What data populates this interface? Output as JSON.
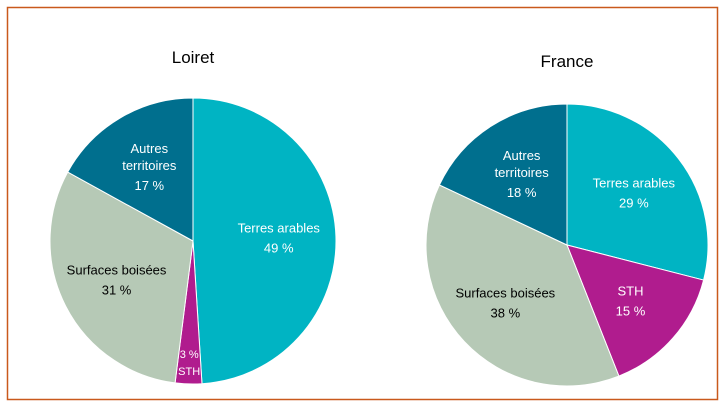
{
  "chart_data": [
    {
      "type": "pie",
      "title": "Loiret",
      "categories": [
        "Terres arables",
        "STH",
        "Surfaces boisées",
        "Autres territoires"
      ],
      "values": [
        49,
        3,
        31,
        17
      ],
      "value_labels": [
        "49 %",
        "3 %",
        "31 %",
        "17 %"
      ],
      "colors": [
        "#00b4c3",
        "#b01c8e",
        "#b6c9b6",
        "#006f8e"
      ]
    },
    {
      "type": "pie",
      "title": "France",
      "categories": [
        "Terres arables",
        "STH",
        "Surfaces boisées",
        "Autres territoires"
      ],
      "values": [
        29,
        15,
        38,
        18
      ],
      "value_labels": [
        "29 %",
        "15 %",
        "38 %",
        "18 %"
      ],
      "colors": [
        "#00b4c3",
        "#b01c8e",
        "#b6c9b6",
        "#006f8e"
      ]
    }
  ]
}
